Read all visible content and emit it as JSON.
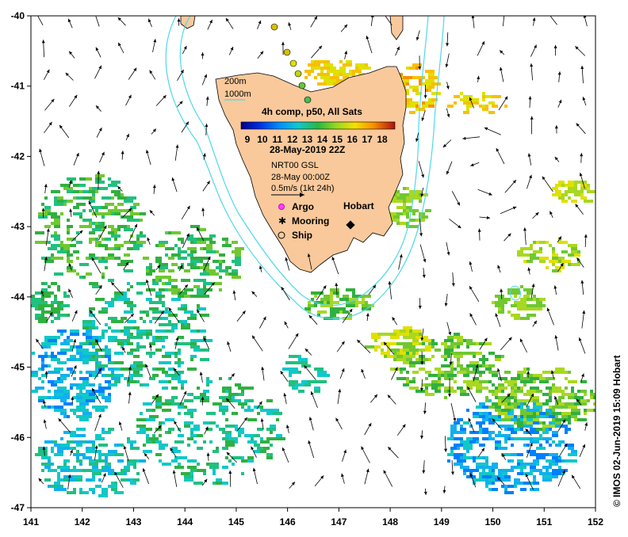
{
  "map": {
    "lon_ticks": [
      "141",
      "142",
      "143",
      "144",
      "145",
      "146",
      "147",
      "148",
      "149",
      "150",
      "151",
      "152"
    ],
    "lat_ticks": [
      "-40",
      "-41",
      "-42",
      "-43",
      "-44",
      "-45",
      "-46",
      "-47"
    ],
    "lon_range": [
      141,
      152
    ],
    "lat_range": [
      -47,
      -40
    ],
    "colors": {
      "land": "#f9c99b",
      "isobath": "#4fd8e8",
      "arrow": "#000000"
    }
  },
  "legend": {
    "isobath_200": "200m",
    "isobath_1000": "1000m",
    "title": "4h comp, p50, All Sats",
    "colorbar_ticks": [
      "9",
      "10",
      "11",
      "12",
      "13",
      "14",
      "15",
      "16",
      "17",
      "18"
    ],
    "colorbar_range": [
      9,
      18
    ],
    "date": "28-May-2019 22Z",
    "current_source": "NRT00 GSL",
    "current_date": "28-May 00:00Z",
    "vector_scale": "0.5m/s (1kt 24h)",
    "argo_label": "Argo",
    "mooring_label": "Mooring",
    "ship_label": "Ship"
  },
  "place": {
    "hobart": "Hobart"
  },
  "credit": "© IMOS 02-Jun-2019 15:09 Hobart"
}
